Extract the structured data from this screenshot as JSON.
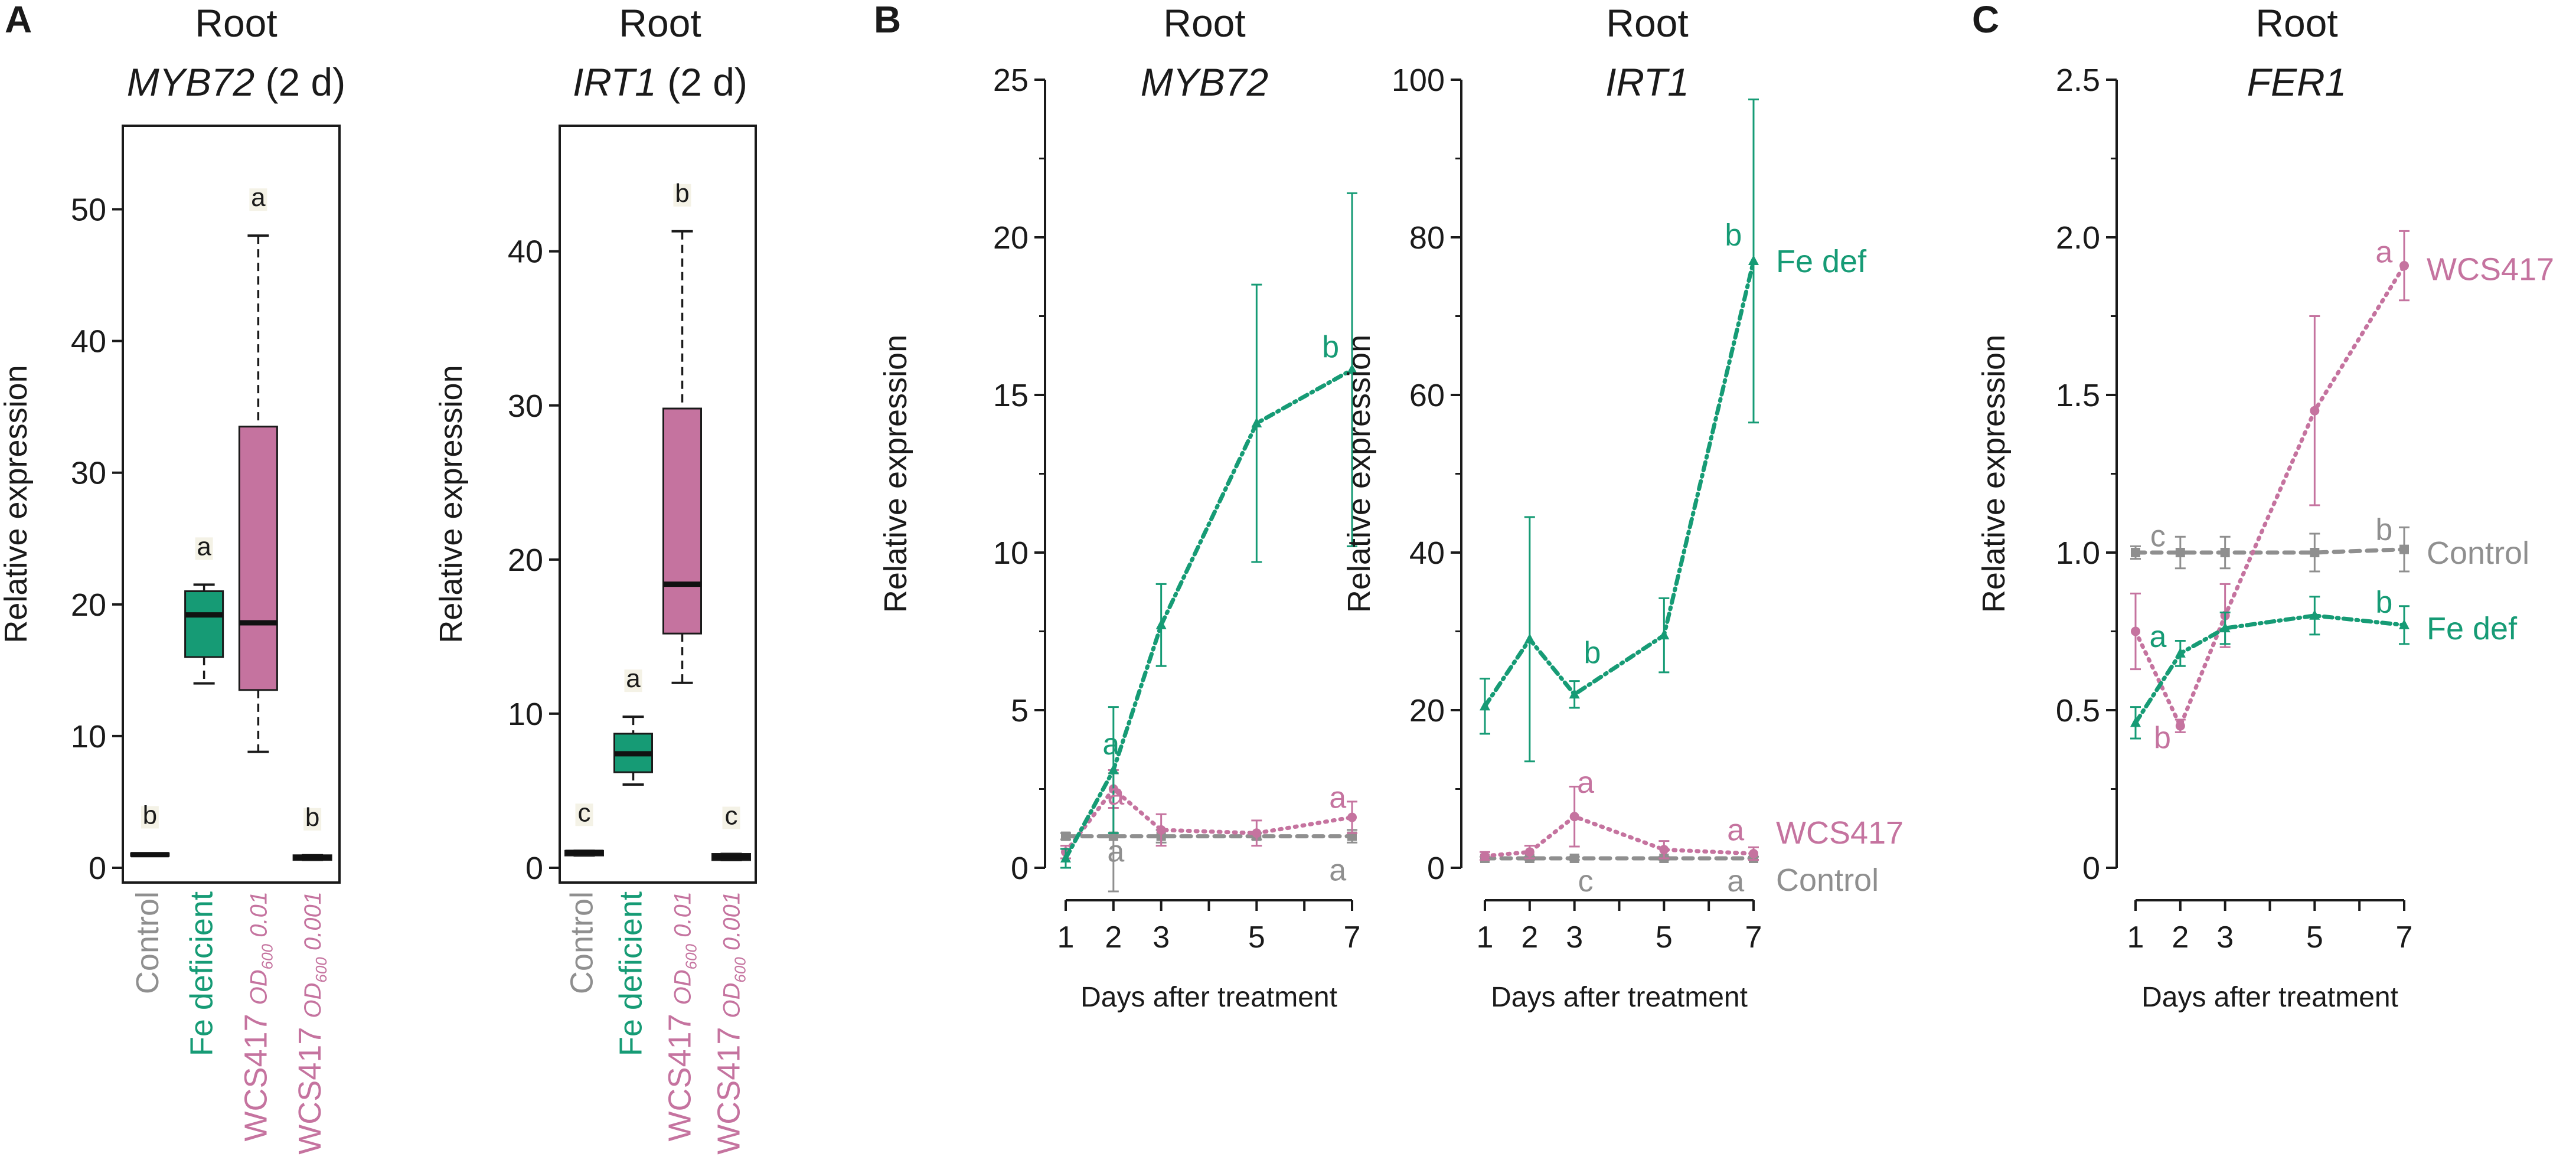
{
  "colors": {
    "control": "#8f8f8f",
    "fe": "#169b75",
    "wcs": "#c5739f",
    "axis": "#1a1a1a",
    "letter_box": "#f4f2e6"
  },
  "panels": {
    "A": "A",
    "B": "B",
    "C": "C"
  },
  "chart_data": [
    {
      "id": "A1",
      "type": "box",
      "title": "Root",
      "subtitle_gene": "MYB72",
      "subtitle_suffix": " (2 d)",
      "ylabel": "Relative expression",
      "ylim": [
        0,
        55
      ],
      "yticks": [
        0,
        10,
        20,
        30,
        40,
        50
      ],
      "groups": [
        {
          "label": "Control",
          "sub": "",
          "tail": "",
          "color": "control",
          "min": 0.9,
          "q1": 0.9,
          "median": 1.0,
          "q3": 1.1,
          "max": 1.1,
          "letter": "b"
        },
        {
          "label": "Fe deficient",
          "sub": "",
          "tail": "",
          "color": "fe",
          "min": 14.0,
          "q1": 16.0,
          "median": 19.2,
          "q3": 21.0,
          "max": 21.5,
          "letter": "a"
        },
        {
          "label": "WCS417 ",
          "sub": "OD",
          "subsub": "600",
          "tail": " 0.01",
          "color": "wcs",
          "min": 8.8,
          "q1": 13.5,
          "median": 18.6,
          "q3": 33.5,
          "max": 48.0,
          "letter": "a"
        },
        {
          "label": "WCS417 ",
          "sub": "OD",
          "subsub": "600",
          "tail": " 0.001",
          "color": "wcs",
          "min": 0.6,
          "q1": 0.6,
          "median": 0.8,
          "q3": 0.95,
          "max": 0.95,
          "letter": "b"
        }
      ]
    },
    {
      "id": "A2",
      "type": "box",
      "title": "Root",
      "subtitle_gene": "IRT1",
      "subtitle_suffix": " (2 d)",
      "ylabel": "Relative expression",
      "ylim": [
        0,
        47
      ],
      "yticks": [
        0,
        10,
        20,
        30,
        40
      ],
      "groups": [
        {
          "label": "Control",
          "sub": "",
          "tail": "",
          "color": "control",
          "min": 0.8,
          "q1": 0.8,
          "median": 1.0,
          "q3": 1.1,
          "max": 1.1,
          "letter": "c"
        },
        {
          "label": "Fe deficient",
          "sub": "",
          "tail": "",
          "color": "fe",
          "min": 5.4,
          "q1": 6.2,
          "median": 7.4,
          "q3": 8.7,
          "max": 9.8,
          "letter": "a"
        },
        {
          "label": "WCS417 ",
          "sub": "OD",
          "subsub": "600",
          "tail": " 0.01",
          "color": "wcs",
          "min": 12.0,
          "q1": 15.2,
          "median": 18.4,
          "q3": 29.8,
          "max": 41.3,
          "letter": "b"
        },
        {
          "label": "WCS417 ",
          "sub": "OD",
          "subsub": "600",
          "tail": " 0.001",
          "color": "wcs",
          "min": 0.5,
          "q1": 0.5,
          "median": 0.7,
          "q3": 0.9,
          "max": 0.9,
          "letter": "c"
        }
      ]
    },
    {
      "id": "B1",
      "type": "line",
      "title": "Root",
      "subtitle_gene": "MYB72",
      "xlabel": "Days after treatment",
      "ylabel": "Relative expression",
      "x": [
        1,
        2,
        3,
        5,
        7
      ],
      "xticks": [
        1,
        2,
        3,
        4,
        5,
        6,
        7
      ],
      "xtick_labels": [
        "1",
        "2",
        "3",
        "5",
        "7"
      ],
      "ylim": [
        0,
        25
      ],
      "yticks": [
        0,
        5,
        10,
        15,
        20,
        25
      ],
      "series": [
        {
          "name": "Control",
          "color": "control",
          "dash": "16,12",
          "marker": "square",
          "values": [
            1.0,
            1.0,
            1.0,
            1.0,
            1.0
          ],
          "err": [
            0.1,
            2.0,
            0.2,
            0.1,
            0.2
          ]
        },
        {
          "name": "WCS417",
          "color": "wcs",
          "dash": "3,10",
          "marker": "circle",
          "values": [
            0.5,
            2.5,
            1.2,
            1.1,
            1.6
          ],
          "err": [
            0.2,
            0.6,
            0.5,
            0.4,
            0.5
          ]
        },
        {
          "name": "Fe def",
          "color": "fe",
          "dash": "14,8,3,8",
          "marker": "triangle",
          "values": [
            0.3,
            3.1,
            7.7,
            14.1,
            15.8
          ],
          "err": [
            0.3,
            2.0,
            1.3,
            4.4,
            5.6
          ]
        }
      ],
      "annotations": [
        {
          "text": "a",
          "color": "fe",
          "x": 1.95,
          "y": 3.6
        },
        {
          "text": "a",
          "color": "wcs",
          "x": 2.05,
          "y": 2.0
        },
        {
          "text": "a",
          "color": "control",
          "x": 2.05,
          "y": 0.2
        },
        {
          "text": "b",
          "color": "fe",
          "x": 6.55,
          "y": 16.2
        },
        {
          "text": "a",
          "color": "wcs",
          "x": 6.7,
          "y": 1.9
        },
        {
          "text": "a",
          "color": "control",
          "x": 6.7,
          "y": -0.4
        }
      ]
    },
    {
      "id": "B2",
      "type": "line",
      "title": "Root",
      "subtitle_gene": "IRT1",
      "xlabel": "Days after treatment",
      "ylabel": "Relative expression",
      "x": [
        1,
        2,
        3,
        5,
        7
      ],
      "xticks": [
        1,
        2,
        3,
        4,
        5,
        6,
        7
      ],
      "xtick_labels": [
        "1",
        "2",
        "3",
        "5",
        "7"
      ],
      "ylim": [
        0,
        100
      ],
      "yticks": [
        0,
        20,
        40,
        60,
        80,
        100
      ],
      "series": [
        {
          "name": "Control",
          "color": "control",
          "dash": "16,12",
          "marker": "square",
          "values": [
            1.2,
            1.2,
            1.2,
            1.2,
            1.2
          ],
          "err": [
            0.2,
            0.2,
            0.2,
            0.2,
            0.2
          ]
        },
        {
          "name": "WCS417",
          "color": "wcs",
          "dash": "3,10",
          "marker": "circle",
          "values": [
            1.5,
            2.0,
            6.5,
            2.3,
            1.8
          ],
          "err": [
            0.5,
            0.8,
            3.8,
            1.1,
            0.8
          ]
        },
        {
          "name": "Fe def",
          "color": "fe",
          "dash": "14,8,3,8",
          "marker": "triangle",
          "values": [
            20.5,
            29.0,
            22.0,
            29.5,
            77.0
          ],
          "err": [
            3.5,
            15.5,
            1.7,
            4.7,
            20.5
          ]
        }
      ],
      "annotations": [
        {
          "text": "b",
          "color": "fe",
          "x": 3.4,
          "y": 26.0
        },
        {
          "text": "a",
          "color": "wcs",
          "x": 3.25,
          "y": 9.5
        },
        {
          "text": "c",
          "color": "control",
          "x": 3.25,
          "y": -3.0
        },
        {
          "text": "b",
          "color": "fe",
          "x": 6.55,
          "y": 79.0
        },
        {
          "text": "a",
          "color": "wcs",
          "x": 6.6,
          "y": 3.5
        },
        {
          "text": "a",
          "color": "control",
          "x": 6.6,
          "y": -3.0
        }
      ]
    },
    {
      "id": "C1",
      "type": "line",
      "title": "Root",
      "subtitle_gene": "FER1",
      "xlabel": "Days after treatment",
      "ylabel": "Relative expression",
      "x": [
        1,
        2,
        3,
        5,
        7
      ],
      "xticks": [
        1,
        2,
        3,
        4,
        5,
        6,
        7
      ],
      "xtick_labels": [
        "1",
        "2",
        "3",
        "5",
        "7"
      ],
      "ylim": [
        0,
        2.5
      ],
      "yticks": [
        0,
        0.5,
        1.0,
        1.5,
        2.0,
        2.5
      ],
      "ytick_labels": [
        "0",
        "0.5",
        "1.0",
        "1.5",
        "2.0",
        "2.5"
      ],
      "series": [
        {
          "name": "Control",
          "color": "control",
          "dash": "16,12",
          "marker": "square",
          "values": [
            1.0,
            1.0,
            1.0,
            1.0,
            1.01
          ],
          "err": [
            0.02,
            0.05,
            0.05,
            0.06,
            0.07
          ]
        },
        {
          "name": "WCS417",
          "color": "wcs",
          "dash": "3,10",
          "marker": "circle",
          "values": [
            0.75,
            0.45,
            0.8,
            1.45,
            1.91
          ],
          "err": [
            0.12,
            0.02,
            0.1,
            0.3,
            0.11
          ]
        },
        {
          "name": "Fe def",
          "color": "fe",
          "dash": "14,8,3,8",
          "marker": "triangle",
          "values": [
            0.46,
            0.68,
            0.76,
            0.8,
            0.77
          ],
          "err": [
            0.05,
            0.04,
            0.05,
            0.06,
            0.06
          ]
        }
      ],
      "annotations": [
        {
          "text": "c",
          "color": "control",
          "x": 1.5,
          "y": 1.02
        },
        {
          "text": "a",
          "color": "fe",
          "x": 1.5,
          "y": 0.7
        },
        {
          "text": "b",
          "color": "wcs",
          "x": 1.6,
          "y": 0.38
        },
        {
          "text": "b",
          "color": "control",
          "x": 6.55,
          "y": 1.04
        },
        {
          "text": "b",
          "color": "fe",
          "x": 6.55,
          "y": 0.81
        },
        {
          "text": "a",
          "color": "wcs",
          "x": 6.55,
          "y": 1.92
        }
      ]
    }
  ],
  "legends": {
    "B2": [
      {
        "text": "Fe def",
        "color": "fe"
      },
      {
        "text": "WCS417",
        "color": "wcs"
      },
      {
        "text": "Control",
        "color": "control"
      }
    ],
    "C1": [
      {
        "text": "WCS417",
        "color": "wcs"
      },
      {
        "text": "Control",
        "color": "control"
      },
      {
        "text": "Fe def",
        "color": "fe"
      }
    ]
  }
}
